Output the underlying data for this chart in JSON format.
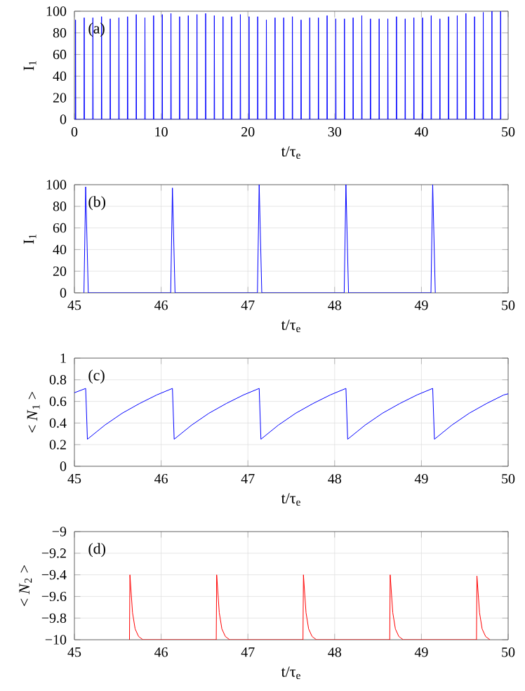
{
  "chart_data": [
    {
      "type": "line",
      "xlabel": "t/τ$_{e}$",
      "ylabel": "I$_{1}$",
      "annotations": [
        "(a)"
      ],
      "xlim": [
        0,
        50
      ],
      "ylim": [
        0,
        100
      ],
      "xticks": [
        0,
        10,
        20,
        30,
        40,
        50
      ],
      "yticks": [
        0,
        20,
        40,
        60,
        80,
        100
      ],
      "grid": true,
      "series": [
        {
          "color": "#0000ff",
          "x": [
            0,
            0.11,
            0.13,
            0.16,
            1.11,
            1.13,
            1.16,
            2.11,
            2.13,
            2.16,
            3.11,
            3.13,
            3.16,
            4.11,
            4.13,
            4.16,
            5.11,
            5.13,
            5.16,
            6.11,
            6.13,
            6.16,
            7.11,
            7.13,
            7.16,
            8.11,
            8.13,
            8.16,
            9.11,
            9.13,
            9.16,
            10.11,
            10.13,
            10.16,
            11.11,
            11.13,
            11.16,
            12.11,
            12.13,
            12.16,
            13.11,
            13.13,
            13.16,
            14.11,
            14.13,
            14.16,
            15.11,
            15.13,
            15.16,
            16.11,
            16.13,
            16.16,
            17.11,
            17.13,
            17.16,
            18.11,
            18.13,
            18.16,
            19.11,
            19.13,
            19.16,
            20.11,
            20.13,
            20.16,
            21.11,
            21.13,
            21.16,
            22.11,
            22.13,
            22.16,
            23.11,
            23.13,
            23.16,
            24.11,
            24.13,
            24.16,
            25.11,
            25.13,
            25.16,
            26.11,
            26.13,
            26.16,
            27.11,
            27.13,
            27.16,
            28.11,
            28.13,
            28.16,
            29.11,
            29.13,
            29.16,
            30.11,
            30.13,
            30.16,
            31.11,
            31.13,
            31.16,
            32.11,
            32.13,
            32.16,
            33.11,
            33.13,
            33.16,
            34.11,
            34.13,
            34.16,
            35.11,
            35.13,
            35.16,
            36.11,
            36.13,
            36.16,
            37.11,
            37.13,
            37.16,
            38.11,
            38.13,
            38.16,
            39.11,
            39.13,
            39.16,
            40.11,
            40.13,
            40.16,
            41.11,
            41.13,
            41.16,
            42.11,
            42.13,
            42.16,
            43.11,
            43.13,
            43.16,
            44.11,
            44.13,
            44.16,
            45.11,
            45.13,
            45.16,
            46.11,
            46.13,
            46.16,
            47.11,
            47.13,
            47.16,
            48.11,
            48.13,
            48.16,
            49.11,
            49.13,
            49.16
          ],
          "values": [
            0,
            0,
            92,
            0,
            0,
            94,
            0,
            0,
            94,
            0,
            0,
            95,
            0,
            0,
            93,
            0,
            0,
            94,
            0,
            0,
            95,
            0,
            0,
            97,
            0,
            0,
            94,
            0,
            0,
            96,
            0,
            0,
            97,
            0,
            0,
            98,
            0,
            0,
            95,
            0,
            0,
            96,
            0,
            0,
            97,
            0,
            0,
            98,
            0,
            0,
            96,
            0,
            0,
            95,
            0,
            0,
            95,
            0,
            0,
            97,
            0,
            0,
            95,
            0,
            0,
            95,
            0,
            0,
            92,
            0,
            0,
            94,
            0,
            0,
            94,
            0,
            0,
            95,
            0,
            0,
            92,
            0,
            0,
            94,
            0,
            0,
            94,
            0,
            0,
            96,
            0,
            0,
            93,
            0,
            0,
            93,
            0,
            0,
            94,
            0,
            0,
            96,
            0,
            0,
            93,
            0,
            0,
            93,
            0,
            0,
            93,
            0,
            0,
            95,
            0,
            0,
            93,
            0,
            0,
            94,
            0,
            0,
            94,
            0,
            0,
            96,
            0,
            0,
            93,
            0,
            0,
            95,
            0,
            0,
            96,
            0,
            0,
            98,
            0,
            0,
            95,
            0,
            0,
            99,
            0,
            0,
            100,
            0,
            0,
            100,
            0
          ]
        }
      ]
    },
    {
      "type": "line",
      "xlabel": "t/τ$_{e}$",
      "ylabel": "I$_{1}$",
      "annotations": [
        "(b)"
      ],
      "xlim": [
        45,
        50
      ],
      "ylim": [
        0,
        100
      ],
      "xticks": [
        45,
        46,
        47,
        48,
        49,
        50
      ],
      "yticks": [
        0,
        20,
        40,
        60,
        80,
        100
      ],
      "grid": true,
      "series": [
        {
          "color": "#0000ff",
          "x": [
            45.11,
            45.13,
            45.16,
            46.11,
            46.13,
            46.16,
            47.11,
            47.13,
            47.16,
            48.11,
            48.13,
            48.16,
            49.11,
            49.13,
            49.16
          ],
          "values": [
            0,
            98,
            0,
            0,
            97,
            0,
            0,
            100,
            0,
            0,
            100,
            0,
            0,
            100,
            0
          ]
        }
      ]
    },
    {
      "type": "line",
      "xlabel": "t/τ$_{e}$",
      "ylabel": "< *N*$_{1}$ >",
      "annotations": [
        "(c)"
      ],
      "xlim": [
        45,
        50
      ],
      "ylim": [
        0,
        1
      ],
      "xticks": [
        45,
        46,
        47,
        48,
        49,
        50
      ],
      "yticks": [
        0,
        0.2,
        0.4,
        0.6,
        0.8,
        1
      ],
      "grid": true,
      "series": [
        {
          "color": "#0000ff",
          "x": [
            45,
            45.13,
            45.15,
            45.35,
            45.55,
            45.75,
            45.95,
            46.13,
            46.15,
            46.35,
            46.55,
            46.75,
            46.95,
            47.13,
            47.15,
            47.35,
            47.55,
            47.75,
            47.95,
            48.13,
            48.15,
            48.35,
            48.55,
            48.75,
            48.95,
            49.13,
            49.15,
            49.35,
            49.55,
            49.75,
            49.95,
            50
          ],
          "values": [
            0.68,
            0.72,
            0.25,
            0.38,
            0.49,
            0.58,
            0.66,
            0.72,
            0.25,
            0.38,
            0.49,
            0.58,
            0.66,
            0.72,
            0.25,
            0.38,
            0.49,
            0.58,
            0.66,
            0.72,
            0.25,
            0.38,
            0.49,
            0.58,
            0.66,
            0.72,
            0.25,
            0.38,
            0.49,
            0.58,
            0.66,
            0.67
          ]
        }
      ]
    },
    {
      "type": "line",
      "xlabel": "t/τ$_{e}$",
      "ylabel": "< *N*$_{2}$ >",
      "annotations": [
        "(d)"
      ],
      "xlim": [
        45,
        50
      ],
      "ylim": [
        -10,
        -9
      ],
      "xticks": [
        45,
        46,
        47,
        48,
        49,
        50
      ],
      "yticks": [
        {
          "value": -10,
          "label": "−10"
        },
        {
          "value": -9.8,
          "label": "−9.8"
        },
        {
          "value": -9.6,
          "label": "−9.6"
        },
        {
          "value": -9.4,
          "label": "−9.4"
        },
        {
          "value": -9.2,
          "label": "−9.2"
        },
        {
          "value": -9,
          "label": "−9"
        }
      ],
      "grid": true,
      "series": [
        {
          "color": "#ff0000",
          "x": [
            45.635,
            45.64,
            45.67,
            45.7,
            45.74,
            45.79,
            46.635,
            46.64,
            46.67,
            46.7,
            46.74,
            46.79,
            47.635,
            47.64,
            47.67,
            47.7,
            47.74,
            47.79,
            48.635,
            48.64,
            48.67,
            48.7,
            48.74,
            48.79,
            49.635,
            49.64,
            49.67,
            49.7,
            49.74,
            49.79
          ],
          "values": [
            -10,
            -9.4,
            -9.75,
            -9.9,
            -9.97,
            -10,
            -10,
            -9.4,
            -9.75,
            -9.9,
            -9.97,
            -10,
            -10,
            -9.4,
            -9.75,
            -9.9,
            -9.97,
            -10,
            -10,
            -9.4,
            -9.75,
            -9.9,
            -9.97,
            -10,
            -10,
            -9.41,
            -9.75,
            -9.9,
            -9.97,
            -10
          ]
        }
      ]
    }
  ]
}
